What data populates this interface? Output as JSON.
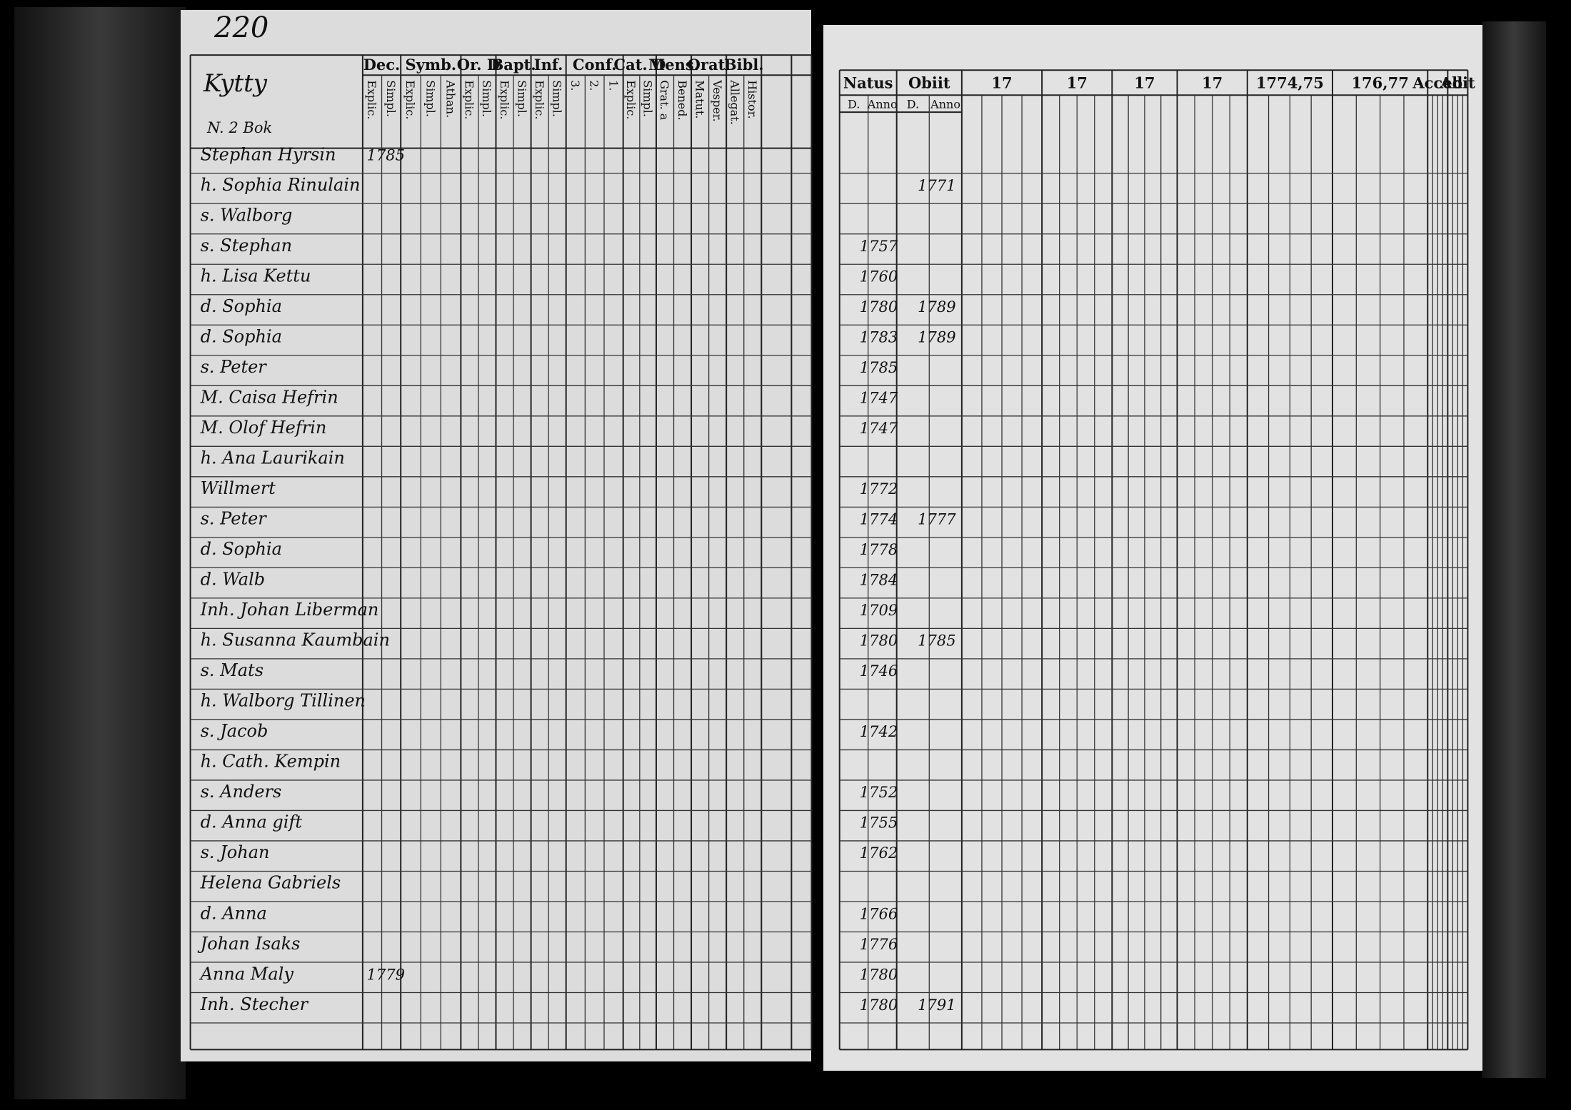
{
  "left_page": {
    "page_number": "220",
    "parish": "Kytty",
    "book": "N. 2 Bok",
    "columns": [
      {
        "label": "Dec.",
        "subs": [
          "Explic.",
          "Simpl."
        ]
      },
      {
        "label": "Symb.",
        "subs": [
          "Explic.",
          "Simpl.",
          "Athan."
        ]
      },
      {
        "label": "Or. D",
        "subs": [
          "Explic.",
          "Simpl."
        ]
      },
      {
        "label": "Bapt.",
        "subs": [
          "Explic.",
          "Simpl."
        ]
      },
      {
        "label": "Inf.",
        "subs": [
          "Explic.",
          "Simpl."
        ]
      },
      {
        "label": "Conf.",
        "subs": [
          "3.",
          "2.",
          "1."
        ]
      },
      {
        "label": "Cat. D",
        "subs": [
          "Explic.",
          "Simpl."
        ]
      },
      {
        "label": "Mens.",
        "subs": [
          "Grat. a",
          "Bened."
        ]
      },
      {
        "label": "Orat.",
        "subs": [
          "Matut.",
          "Vesper."
        ]
      },
      {
        "label": "Bibl.",
        "subs": [
          "Allegat.",
          "Histor."
        ]
      }
    ]
  },
  "right_page": {
    "columns": [
      {
        "label": "Natus",
        "subs": [
          "D.",
          "Anno"
        ]
      },
      {
        "label": "Obiit",
        "subs": [
          "D.",
          "Anno"
        ]
      },
      {
        "label": "17"
      },
      {
        "label": "17"
      },
      {
        "label": "17"
      },
      {
        "label": "17"
      },
      {
        "label": "1774,75"
      },
      {
        "label": "176,77"
      },
      {
        "label": "Acced"
      },
      {
        "label": "Abit"
      }
    ]
  },
  "rows": [
    {
      "name": "Stephan Hyrsin",
      "year": "1785"
    },
    {
      "name": "h. Sophia Rinulain",
      "died": "1771"
    },
    {
      "name": "s. Walborg"
    },
    {
      "name": "s. Stephan",
      "born": "1757"
    },
    {
      "name": "h. Lisa Kettu",
      "born": "1760"
    },
    {
      "name": "d. Sophia",
      "born": "1780",
      "died": "1789"
    },
    {
      "name": "d. Sophia",
      "born": "1783",
      "died": "1789"
    },
    {
      "name": "s. Peter",
      "born": "1785"
    },
    {
      "name": "M. Caisa Hefrin",
      "born": "1747"
    },
    {
      "name": "M. Olof Hefrin",
      "born": "1747"
    },
    {
      "name": "h. Ana Laurikain"
    },
    {
      "name": "Willmert",
      "born": "1772"
    },
    {
      "name": "s. Peter",
      "born": "1774",
      "died": "1777"
    },
    {
      "name": "d. Sophia",
      "born": "1778"
    },
    {
      "name": "d. Walb",
      "born": "1784"
    },
    {
      "name": "Inh. Johan Liberman",
      "born": "1709"
    },
    {
      "name": "h. Susanna Kaumbain",
      "born": "1780",
      "died": "1785"
    },
    {
      "name": "s. Mats",
      "born": "1746"
    },
    {
      "name": "h. Walborg Tillinen"
    },
    {
      "name": "s. Jacob",
      "born": "1742"
    },
    {
      "name": "h. Cath. Kempin"
    },
    {
      "name": "s. Anders",
      "born": "1752"
    },
    {
      "name": "d. Anna gift",
      "born": "1755"
    },
    {
      "name": "s. Johan",
      "born": "1762"
    },
    {
      "name": "Helena Gabriels"
    },
    {
      "name": "d. Anna",
      "born": "1766"
    },
    {
      "name": "Johan Isaks",
      "born": "1776"
    },
    {
      "name": "Anna Maly",
      "year": "1779",
      "born": "1780"
    },
    {
      "name": "Inh. Stecher",
      "born": "1780",
      "died": "1791"
    }
  ]
}
